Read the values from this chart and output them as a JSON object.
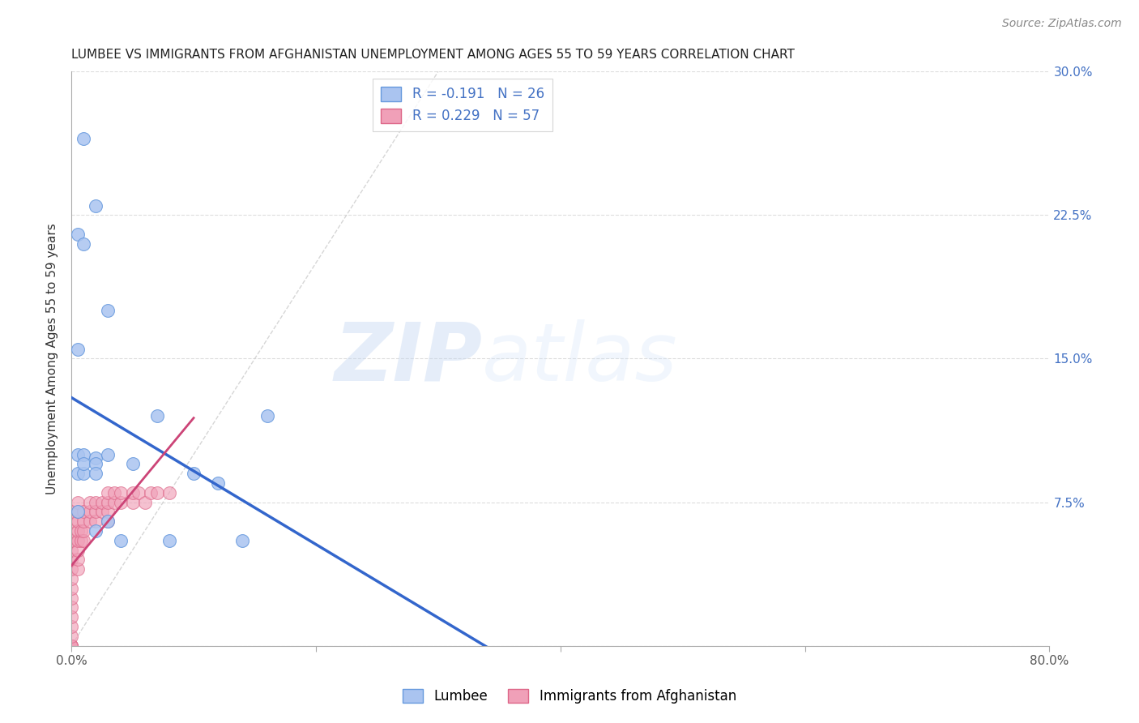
{
  "title": "LUMBEE VS IMMIGRANTS FROM AFGHANISTAN UNEMPLOYMENT AMONG AGES 55 TO 59 YEARS CORRELATION CHART",
  "source": "Source: ZipAtlas.com",
  "ylabel": "Unemployment Among Ages 55 to 59 years",
  "xlim": [
    0.0,
    0.8
  ],
  "ylim": [
    0.0,
    0.3
  ],
  "xticks": [
    0.0,
    0.2,
    0.4,
    0.6,
    0.8
  ],
  "xticklabels": [
    "0.0%",
    "",
    "",
    "",
    "80.0%"
  ],
  "yticks": [
    0.0,
    0.075,
    0.15,
    0.225,
    0.3
  ],
  "yticklabels": [
    "",
    "7.5%",
    "15.0%",
    "22.5%",
    "30.0%"
  ],
  "lumbee_color": "#aac4f0",
  "lumbee_edge": "#6699dd",
  "afghanistan_color": "#f0a0b8",
  "afghanistan_edge": "#dd6688",
  "lumbee_R": -0.191,
  "lumbee_N": 26,
  "afghanistan_R": 0.229,
  "afghanistan_N": 57,
  "lumbee_line_color": "#3366CC",
  "afghanistan_line_color": "#cc4477",
  "diagonal_color": "#cccccc",
  "lumbee_x": [
    0.01,
    0.02,
    0.005,
    0.01,
    0.03,
    0.005,
    0.005,
    0.01,
    0.02,
    0.03,
    0.05,
    0.07,
    0.1,
    0.12,
    0.16,
    0.005,
    0.005,
    0.01,
    0.01,
    0.02,
    0.02,
    0.02,
    0.03,
    0.04,
    0.08,
    0.14
  ],
  "lumbee_y": [
    0.265,
    0.23,
    0.215,
    0.21,
    0.175,
    0.155,
    0.1,
    0.1,
    0.098,
    0.1,
    0.095,
    0.12,
    0.09,
    0.085,
    0.12,
    0.09,
    0.07,
    0.09,
    0.095,
    0.095,
    0.09,
    0.06,
    0.065,
    0.055,
    0.055,
    0.055
  ],
  "afghanistan_x": [
    0.0,
    0.0,
    0.0,
    0.0,
    0.0,
    0.0,
    0.0,
    0.0,
    0.0,
    0.0,
    0.0,
    0.0,
    0.0,
    0.0,
    0.0,
    0.0,
    0.0,
    0.0,
    0.0,
    0.0,
    0.005,
    0.005,
    0.005,
    0.005,
    0.005,
    0.005,
    0.005,
    0.005,
    0.008,
    0.008,
    0.01,
    0.01,
    0.01,
    0.01,
    0.015,
    0.015,
    0.015,
    0.02,
    0.02,
    0.02,
    0.025,
    0.025,
    0.03,
    0.03,
    0.03,
    0.03,
    0.035,
    0.035,
    0.04,
    0.04,
    0.05,
    0.05,
    0.055,
    0.06,
    0.065,
    0.07,
    0.08
  ],
  "afghanistan_y": [
    0.0,
    0.0,
    0.0,
    0.0,
    0.0,
    0.005,
    0.01,
    0.015,
    0.02,
    0.025,
    0.03,
    0.035,
    0.04,
    0.045,
    0.05,
    0.055,
    0.055,
    0.06,
    0.065,
    0.07,
    0.04,
    0.045,
    0.05,
    0.055,
    0.06,
    0.065,
    0.07,
    0.075,
    0.055,
    0.06,
    0.055,
    0.06,
    0.065,
    0.07,
    0.065,
    0.07,
    0.075,
    0.065,
    0.07,
    0.075,
    0.07,
    0.075,
    0.065,
    0.07,
    0.075,
    0.08,
    0.075,
    0.08,
    0.075,
    0.08,
    0.075,
    0.08,
    0.08,
    0.075,
    0.08,
    0.08,
    0.08
  ],
  "legend_lumbee_label": "Lumbee",
  "legend_afghanistan_label": "Immigrants from Afghanistan",
  "watermark_zip": "ZIP",
  "watermark_atlas": "atlas",
  "background_color": "#ffffff",
  "grid_color": "#dddddd",
  "title_fontsize": 11,
  "axis_label_fontsize": 11,
  "tick_fontsize": 11,
  "legend_fontsize": 12,
  "source_fontsize": 10,
  "scatter_size": 130
}
